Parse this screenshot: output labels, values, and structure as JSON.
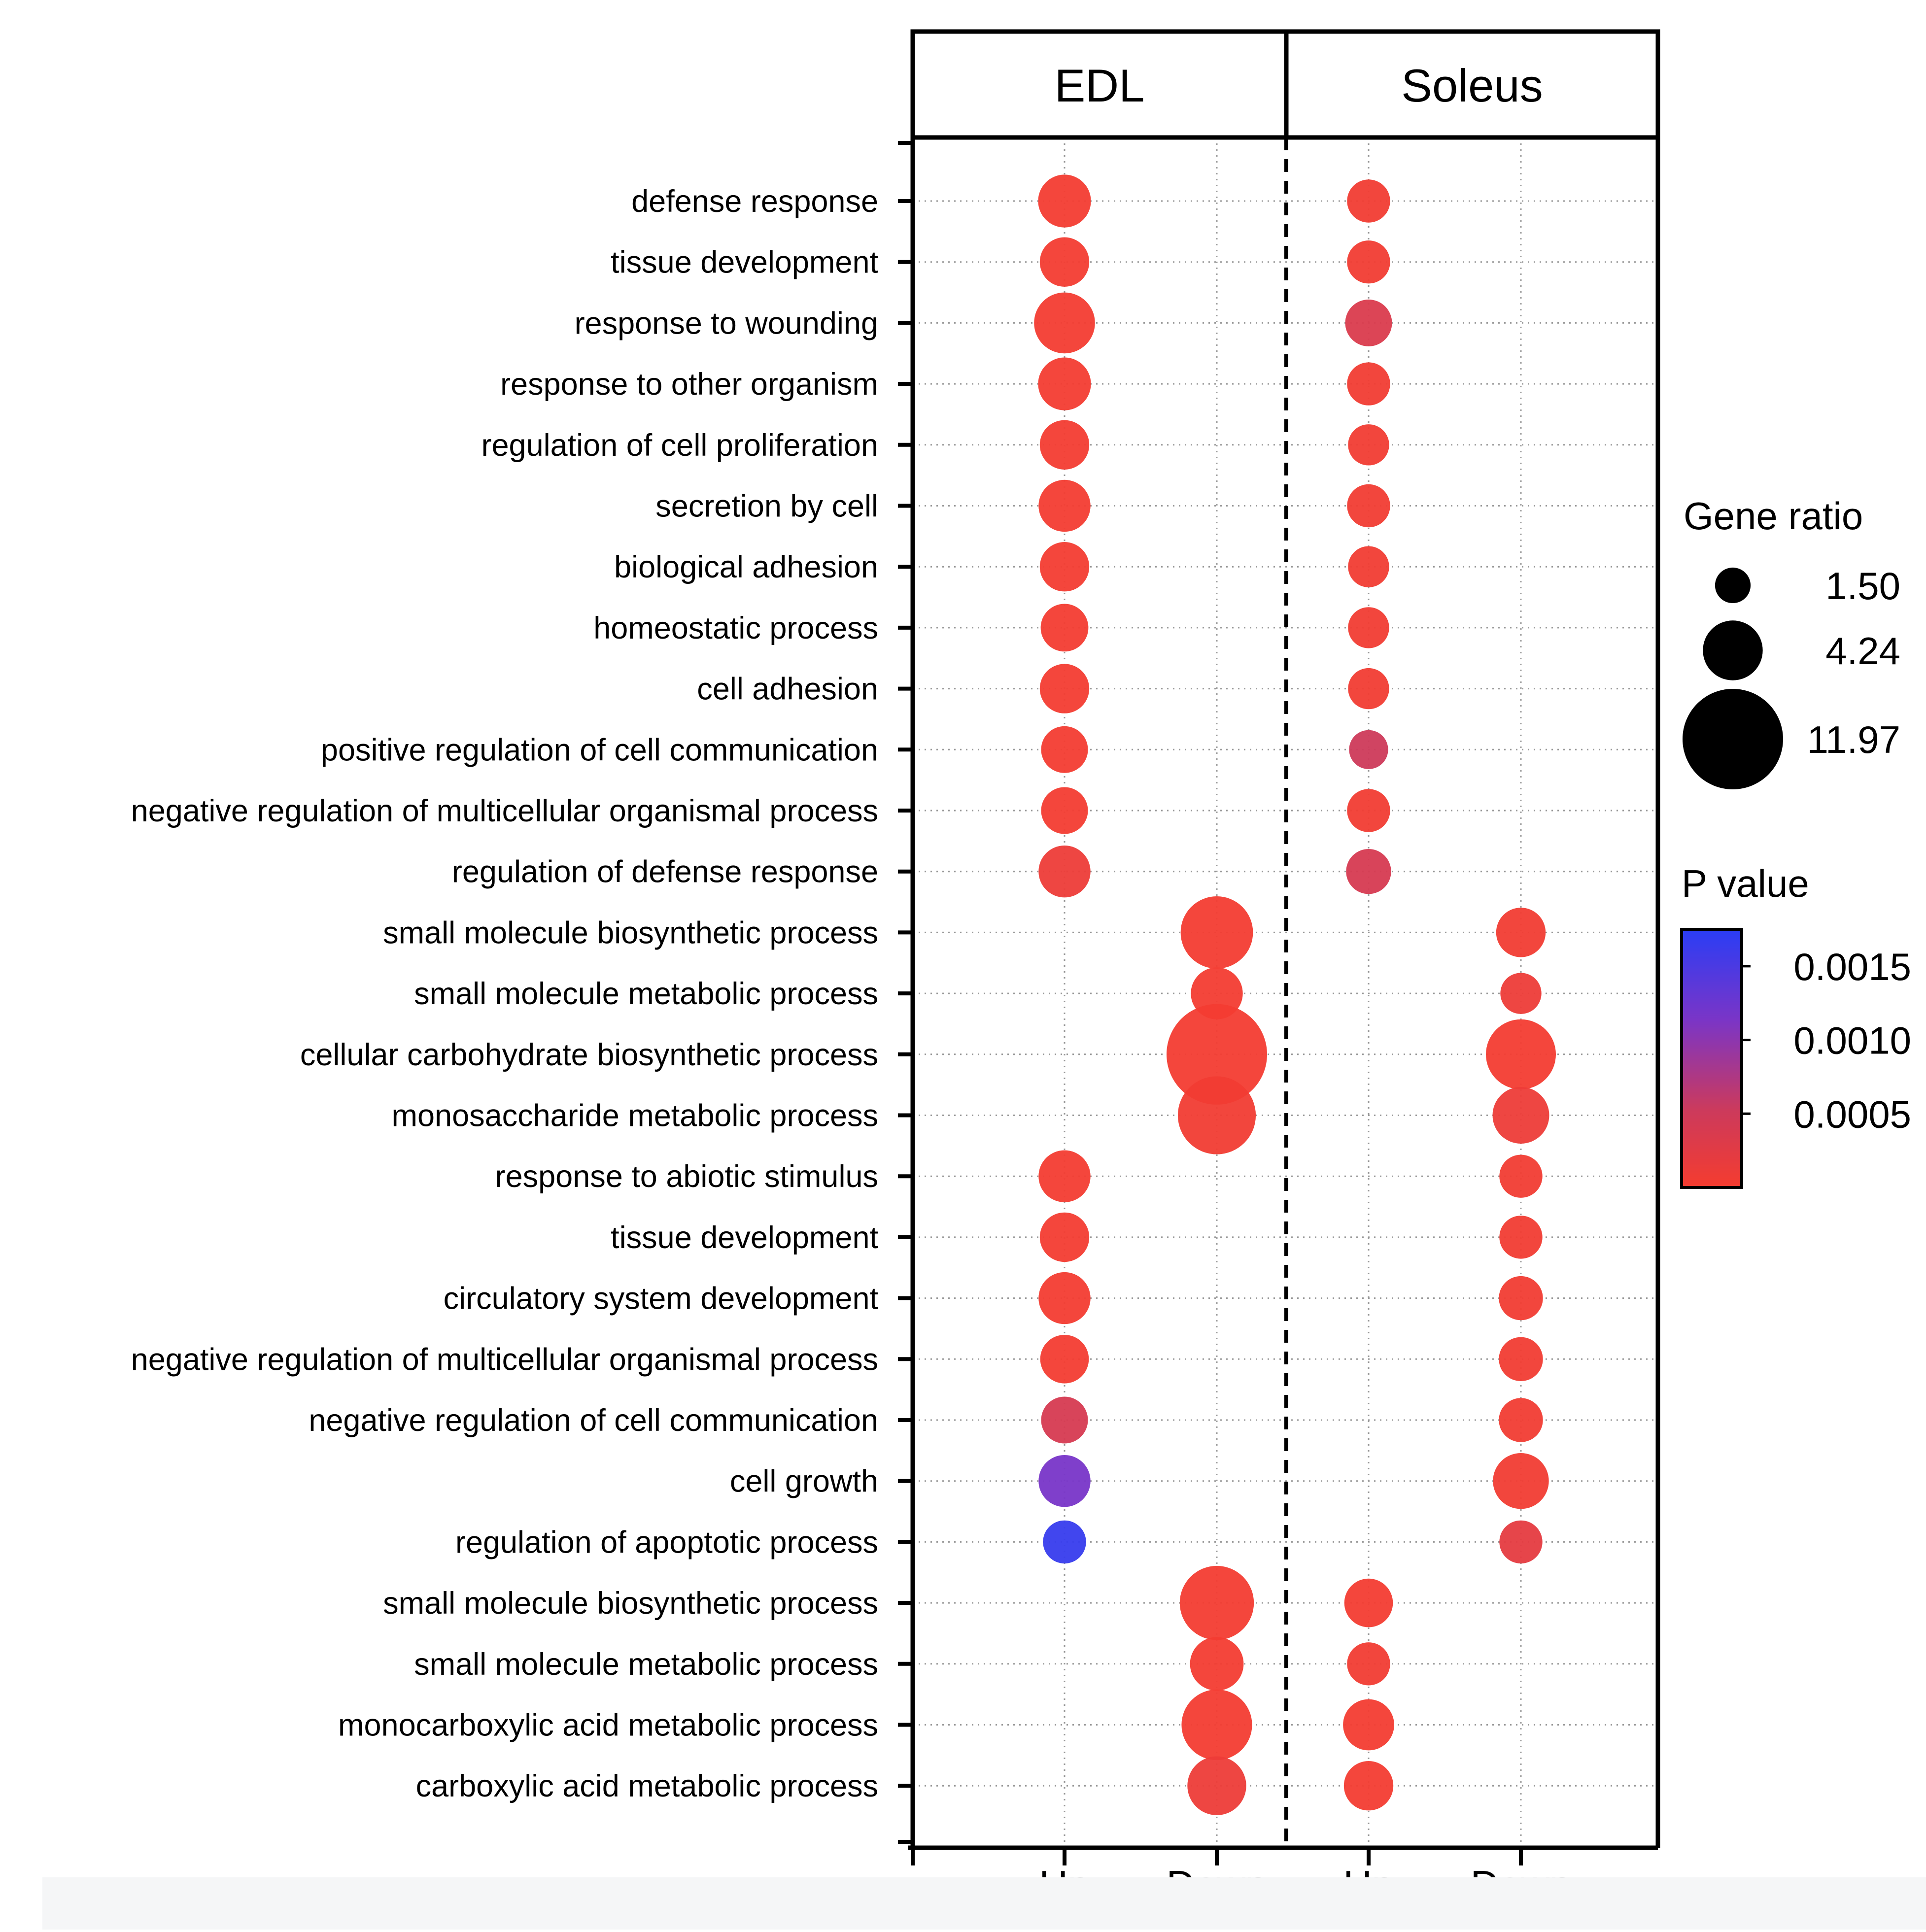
{
  "chart_data": {
    "type": "bubble",
    "panels": [
      "EDL",
      "Soleus"
    ],
    "x_categories": [
      "Up",
      "Down",
      "Up",
      "Down"
    ],
    "column_panel": [
      "EDL",
      "EDL",
      "Soleus",
      "Soleus"
    ],
    "terms": [
      "defense response",
      "tissue development",
      "response to wounding",
      "response to other organism",
      "regulation of cell proliferation",
      "secretion by cell",
      "biological adhesion",
      "homeostatic process",
      "cell adhesion",
      "positive regulation of cell communication",
      "negative regulation of multicellular organismal process",
      "regulation of defense response",
      "small molecule biosynthetic process",
      "small molecule metabolic process",
      "cellular carbohydrate biosynthetic process",
      "monosaccharide metabolic process",
      "response to abiotic stimulus",
      "tissue development",
      "circulatory system development",
      "negative regulation of multicellular organismal process",
      "negative regulation of cell communication",
      "cell growth",
      "regulation of apoptotic process",
      "small molecule biosynthetic process",
      "small molecule metabolic process",
      "monocarboxylic acid metabolic process",
      "carboxylic acid metabolic process"
    ],
    "points": [
      {
        "term_index": 0,
        "col": 0,
        "gene_ratio": 3.3,
        "p_value": 2e-05
      },
      {
        "term_index": 0,
        "col": 2,
        "gene_ratio": 2.2,
        "p_value": 5e-05
      },
      {
        "term_index": 1,
        "col": 0,
        "gene_ratio": 2.9,
        "p_value": 2e-05
      },
      {
        "term_index": 1,
        "col": 2,
        "gene_ratio": 2.2,
        "p_value": 5e-05
      },
      {
        "term_index": 2,
        "col": 0,
        "gene_ratio": 4.4,
        "p_value": 2e-05
      },
      {
        "term_index": 2,
        "col": 2,
        "gene_ratio": 2.6,
        "p_value": 0.00035
      },
      {
        "term_index": 3,
        "col": 0,
        "gene_ratio": 3.3,
        "p_value": 2e-05
      },
      {
        "term_index": 3,
        "col": 2,
        "gene_ratio": 2.2,
        "p_value": 5e-05
      },
      {
        "term_index": 4,
        "col": 0,
        "gene_ratio": 2.9,
        "p_value": 2e-05
      },
      {
        "term_index": 4,
        "col": 2,
        "gene_ratio": 2.0,
        "p_value": 5e-05
      },
      {
        "term_index": 5,
        "col": 0,
        "gene_ratio": 3.2,
        "p_value": 2e-05
      },
      {
        "term_index": 5,
        "col": 2,
        "gene_ratio": 2.2,
        "p_value": 5e-05
      },
      {
        "term_index": 6,
        "col": 0,
        "gene_ratio": 2.9,
        "p_value": 2e-05
      },
      {
        "term_index": 6,
        "col": 2,
        "gene_ratio": 2.0,
        "p_value": 5e-05
      },
      {
        "term_index": 7,
        "col": 0,
        "gene_ratio": 2.7,
        "p_value": 2e-05
      },
      {
        "term_index": 7,
        "col": 2,
        "gene_ratio": 2.0,
        "p_value": 5e-05
      },
      {
        "term_index": 8,
        "col": 0,
        "gene_ratio": 2.9,
        "p_value": 2e-05
      },
      {
        "term_index": 8,
        "col": 2,
        "gene_ratio": 2.0,
        "p_value": 5e-05
      },
      {
        "term_index": 9,
        "col": 0,
        "gene_ratio": 2.6,
        "p_value": 2e-05
      },
      {
        "term_index": 9,
        "col": 2,
        "gene_ratio": 1.8,
        "p_value": 0.0005
      },
      {
        "term_index": 10,
        "col": 0,
        "gene_ratio": 2.6,
        "p_value": 2e-05
      },
      {
        "term_index": 10,
        "col": 2,
        "gene_ratio": 2.2,
        "p_value": 5e-05
      },
      {
        "term_index": 11,
        "col": 0,
        "gene_ratio": 3.2,
        "p_value": 0.0001
      },
      {
        "term_index": 11,
        "col": 2,
        "gene_ratio": 2.4,
        "p_value": 0.0004
      },
      {
        "term_index": 12,
        "col": 1,
        "gene_ratio": 6.2,
        "p_value": 2e-05
      },
      {
        "term_index": 12,
        "col": 3,
        "gene_ratio": 2.9,
        "p_value": 5e-05
      },
      {
        "term_index": 13,
        "col": 1,
        "gene_ratio": 3.2,
        "p_value": 2e-05
      },
      {
        "term_index": 13,
        "col": 3,
        "gene_ratio": 2.0,
        "p_value": 0.0001
      },
      {
        "term_index": 14,
        "col": 1,
        "gene_ratio": 11.97,
        "p_value": 3e-05
      },
      {
        "term_index": 14,
        "col": 3,
        "gene_ratio": 5.8,
        "p_value": 3e-05
      },
      {
        "term_index": 15,
        "col": 1,
        "gene_ratio": 7.2,
        "p_value": 5e-05
      },
      {
        "term_index": 15,
        "col": 3,
        "gene_ratio": 3.8,
        "p_value": 0.0001
      },
      {
        "term_index": 16,
        "col": 0,
        "gene_ratio": 3.2,
        "p_value": 2e-05
      },
      {
        "term_index": 16,
        "col": 3,
        "gene_ratio": 2.2,
        "p_value": 5e-05
      },
      {
        "term_index": 17,
        "col": 0,
        "gene_ratio": 2.9,
        "p_value": 2e-05
      },
      {
        "term_index": 17,
        "col": 3,
        "gene_ratio": 2.2,
        "p_value": 5e-05
      },
      {
        "term_index": 18,
        "col": 0,
        "gene_ratio": 3.2,
        "p_value": 2e-05
      },
      {
        "term_index": 18,
        "col": 3,
        "gene_ratio": 2.3,
        "p_value": 5e-05
      },
      {
        "term_index": 19,
        "col": 0,
        "gene_ratio": 2.8,
        "p_value": 2e-05
      },
      {
        "term_index": 19,
        "col": 3,
        "gene_ratio": 2.3,
        "p_value": 5e-05
      },
      {
        "term_index": 20,
        "col": 0,
        "gene_ratio": 2.6,
        "p_value": 0.0004
      },
      {
        "term_index": 20,
        "col": 3,
        "gene_ratio": 2.3,
        "p_value": 5e-05
      },
      {
        "term_index": 21,
        "col": 0,
        "gene_ratio": 3.2,
        "p_value": 0.00115
      },
      {
        "term_index": 21,
        "col": 3,
        "gene_ratio": 3.7,
        "p_value": 5e-05
      },
      {
        "term_index": 22,
        "col": 0,
        "gene_ratio": 2.2,
        "p_value": 0.00165
      },
      {
        "term_index": 22,
        "col": 3,
        "gene_ratio": 2.2,
        "p_value": 0.0002
      },
      {
        "term_index": 23,
        "col": 1,
        "gene_ratio": 6.5,
        "p_value": 2e-05
      },
      {
        "term_index": 23,
        "col": 2,
        "gene_ratio": 2.8,
        "p_value": 2e-05
      },
      {
        "term_index": 24,
        "col": 1,
        "gene_ratio": 3.4,
        "p_value": 2e-05
      },
      {
        "term_index": 24,
        "col": 2,
        "gene_ratio": 2.2,
        "p_value": 5e-05
      },
      {
        "term_index": 25,
        "col": 1,
        "gene_ratio": 5.9,
        "p_value": 2e-05
      },
      {
        "term_index": 25,
        "col": 2,
        "gene_ratio": 3.1,
        "p_value": 2e-05
      },
      {
        "term_index": 26,
        "col": 1,
        "gene_ratio": 4.1,
        "p_value": 0.0001
      },
      {
        "term_index": 26,
        "col": 2,
        "gene_ratio": 2.9,
        "p_value": 2e-05
      }
    ],
    "size_legend": {
      "title": "Gene ratio",
      "values": [
        1.5,
        4.24,
        11.97
      ],
      "labels": [
        "1.50",
        "4.24",
        "11.97"
      ]
    },
    "color_legend": {
      "title": "P value",
      "range": [
        0,
        0.00175
      ],
      "tick_values": [
        0.0015,
        0.001,
        0.0005
      ],
      "tick_labels": [
        "0.0015",
        "0.0010",
        "0.0005"
      ],
      "colors": {
        "low": "#f53c2f",
        "mid": "#cc3a5c",
        "midhigh": "#7a35c7",
        "high": "#2a3df5"
      }
    },
    "separator_between_panels": "dashed",
    "grid": "dotted"
  }
}
